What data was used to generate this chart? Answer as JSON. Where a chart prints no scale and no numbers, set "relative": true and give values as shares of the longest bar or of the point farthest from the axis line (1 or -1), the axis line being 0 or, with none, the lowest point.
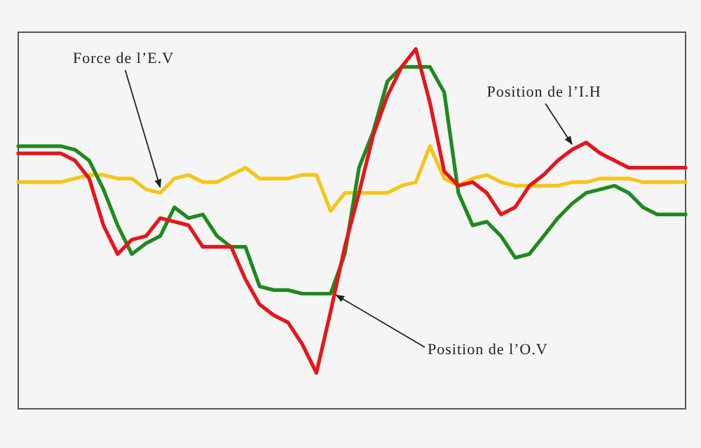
{
  "chart_data": {
    "type": "line",
    "relative": true,
    "categories": [
      null,
      null,
      null,
      null,
      null,
      null,
      null,
      null,
      null,
      null,
      null,
      null,
      null,
      null,
      null,
      null,
      null,
      null,
      null,
      null,
      null,
      null,
      null,
      null,
      null,
      null,
      null,
      null,
      null,
      null,
      null,
      null,
      null,
      null,
      null,
      null,
      null,
      null,
      null,
      null,
      null,
      null,
      null,
      null,
      null,
      null,
      null,
      null
    ],
    "series": [
      {
        "color": "#f5c518",
        "values": [
          0.63,
          0.63,
          0.63,
          0.63,
          0.64,
          0.65,
          0.65,
          0.64,
          0.64,
          0.61,
          0.6,
          0.64,
          0.65,
          0.63,
          0.63,
          0.65,
          0.67,
          0.64,
          0.64,
          0.64,
          0.65,
          0.65,
          0.55,
          0.6,
          0.6,
          0.6,
          0.6,
          0.62,
          0.63,
          0.73,
          0.64,
          0.62,
          0.64,
          0.65,
          0.63,
          0.62,
          0.62,
          0.62,
          0.62,
          0.63,
          0.63,
          0.64,
          0.64,
          0.64,
          0.63,
          0.63,
          0.63,
          0.63
        ]
      },
      {
        "color": "#1e8a1e",
        "values": [
          0.73,
          0.73,
          0.73,
          0.73,
          0.72,
          0.69,
          0.61,
          0.51,
          0.43,
          0.46,
          0.48,
          0.56,
          0.53,
          0.54,
          0.48,
          0.45,
          0.45,
          0.34,
          0.33,
          0.33,
          0.32,
          0.32,
          0.32,
          0.43,
          0.67,
          0.77,
          0.91,
          0.95,
          0.95,
          0.95,
          0.88,
          0.6,
          0.51,
          0.52,
          0.48,
          0.42,
          0.43,
          0.48,
          0.53,
          0.57,
          0.6,
          0.61,
          0.62,
          0.6,
          0.56,
          0.54,
          0.54,
          0.54
        ]
      },
      {
        "color": "#e8141a",
        "values": [
          0.71,
          0.71,
          0.71,
          0.71,
          0.69,
          0.64,
          0.51,
          0.43,
          0.47,
          0.48,
          0.53,
          0.52,
          0.51,
          0.45,
          0.45,
          0.45,
          0.36,
          0.29,
          0.26,
          0.24,
          0.18,
          0.1,
          0.27,
          0.45,
          0.6,
          0.76,
          0.87,
          0.95,
          1,
          0.85,
          0.66,
          0.62,
          0.63,
          0.6,
          0.54,
          0.56,
          0.62,
          0.65,
          0.69,
          0.72,
          0.74,
          0.71,
          0.69,
          0.67,
          0.67,
          0.67,
          0.67,
          0.67
        ]
      }
    ],
    "annotations": [
      "Force de l’E.V",
      "Position de l’I.H",
      "Position de l’O.V"
    ],
    "line_style": "solid"
  }
}
